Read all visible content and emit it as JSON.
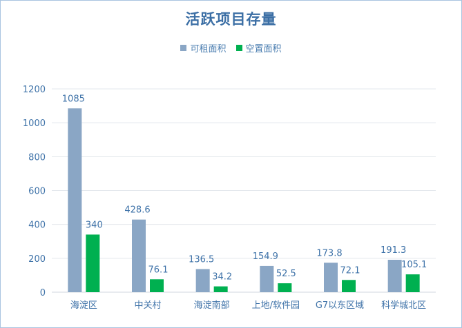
{
  "chart_data": {
    "type": "bar",
    "title": "活跃项目存量",
    "categories": [
      "海淀区",
      "中关村",
      "海淀南部",
      "上地/软件园",
      "G7以东区域",
      "科学城北区"
    ],
    "series": [
      {
        "name": "可租面积",
        "values": [
          1085,
          428.6,
          136.5,
          154.9,
          173.8,
          191.3
        ],
        "color": "#8aa6c5"
      },
      {
        "name": "空置面积",
        "values": [
          340,
          76.1,
          34.2,
          52.5,
          72.1,
          105.1
        ],
        "color": "#00b050"
      }
    ],
    "ylim": [
      0,
      1200
    ],
    "yticks": [
      0,
      200,
      400,
      600,
      800,
      1000,
      1200
    ],
    "xlabel": "",
    "ylabel": "",
    "grid": true,
    "legend_position": "top"
  }
}
